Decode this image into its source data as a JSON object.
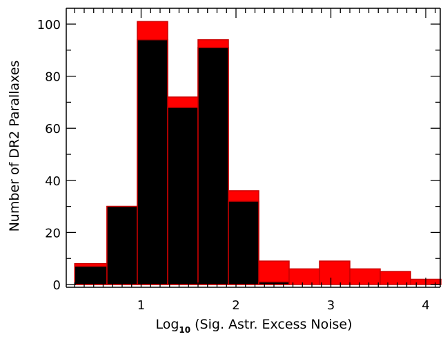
{
  "chart_data": {
    "type": "bar",
    "title": "",
    "xlabel_main": "Log",
    "xlabel_sub": "10",
    "xlabel_rest": " (Sig. Astr. Excess Noise)",
    "ylabel": "Number of DR2 Parallaxes",
    "xlim": [
      0.2,
      4.18
    ],
    "ylim": [
      -1,
      106
    ],
    "xticks": [
      1,
      2,
      3,
      4
    ],
    "yticks": [
      0,
      20,
      40,
      60,
      80,
      100
    ],
    "bin_edges": [
      0.3,
      0.64,
      0.96,
      1.28,
      1.6,
      1.92,
      2.24,
      2.56,
      2.88,
      3.2,
      3.52,
      3.84,
      4.16
    ],
    "series": [
      {
        "values": [
          8,
          30,
          101,
          72,
          94,
          36,
          9,
          6,
          9,
          6,
          5,
          2
        ]
      },
      {
        "values": [
          7,
          30,
          94,
          68,
          91,
          32,
          1,
          0,
          0,
          0,
          0,
          0
        ]
      }
    ],
    "colors": {
      "total_fill": "#ff0000",
      "subset_fill": "#000000",
      "edge": "#cc0000",
      "axis": "#000000"
    },
    "grid": false,
    "legend": "none"
  }
}
